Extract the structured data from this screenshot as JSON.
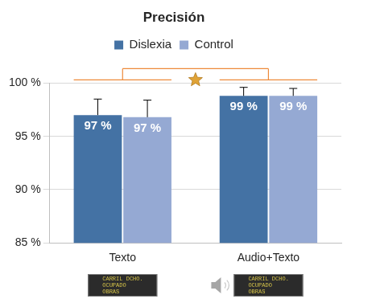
{
  "chart_data": {
    "type": "bar",
    "title": "Precisión",
    "categories": [
      "Texto",
      "Audio+Texto"
    ],
    "series": [
      {
        "name": "Dislexia",
        "color": "#4472a4",
        "values": [
          97.0,
          98.8
        ],
        "value_labels": [
          "97 %",
          "99 %"
        ],
        "errors": [
          1.5,
          0.8
        ]
      },
      {
        "name": "Control",
        "color": "#95a9d3",
        "values": [
          96.8,
          98.8
        ],
        "value_labels": [
          "97 %",
          "99 %"
        ],
        "errors": [
          1.6,
          0.7
        ]
      }
    ],
    "ylim": [
      85,
      100
    ],
    "yticks": [
      {
        "value": 85,
        "label": "85 %"
      },
      {
        "value": 90,
        "label": "90 %"
      },
      {
        "value": 95,
        "label": "95 %"
      },
      {
        "value": 100,
        "label": "100 %"
      }
    ],
    "grid": true,
    "legend": "top",
    "data_labels": true,
    "annotations": [
      "CARRIL DCHO.",
      "OCUPADO",
      "OBRAS"
    ]
  }
}
